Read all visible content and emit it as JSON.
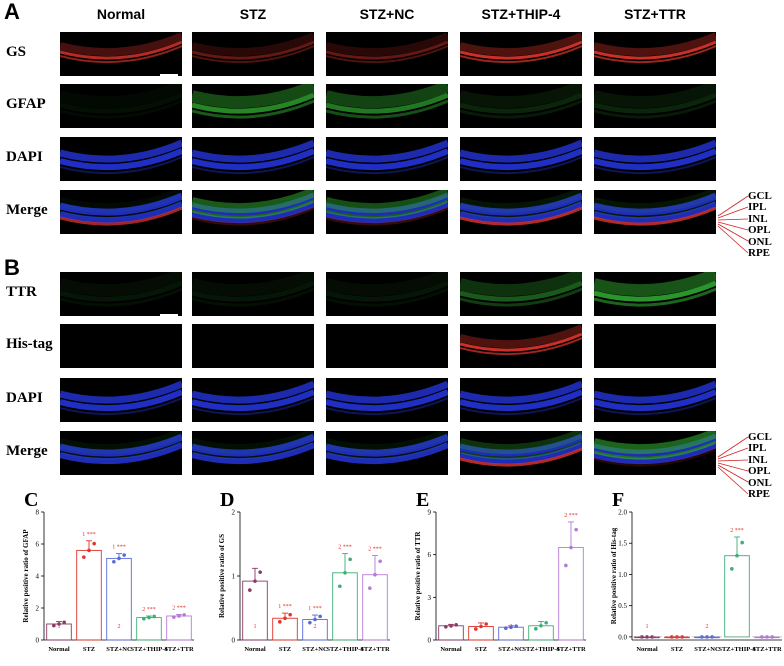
{
  "panelA": {
    "letter": "A",
    "columns": [
      "Normal",
      "STZ",
      "STZ+NC",
      "STZ+THIP-4",
      "STZ+TTR"
    ],
    "rows": [
      "GS",
      "GFAP",
      "DAPI",
      "Merge"
    ]
  },
  "panelB": {
    "letter": "B",
    "rows": [
      "TTR",
      "His-tag",
      "DAPI",
      "Merge"
    ]
  },
  "layers": [
    "GCL",
    "IPL",
    "INL",
    "OPL",
    "ONL",
    "RPE"
  ],
  "colors": {
    "red": "#e0342c",
    "green": "#2fa52f",
    "blue": "#2434d8",
    "bar_normal": "#8a3a6a",
    "bar_stz": "#e0342c",
    "bar_nc": "#5a6ad8",
    "bar_thip": "#3fae76",
    "bar_ttr": "#b57ad8"
  },
  "chart_data": [
    {
      "type": "bar",
      "letter": "C",
      "ylabel": "Relative positive ratio of GFAP",
      "categories": [
        "Normal",
        "STZ",
        "STZ+NC",
        "STZ+THIP-4",
        "STZ+TTR"
      ],
      "values": [
        1.0,
        5.6,
        5.1,
        1.4,
        1.5
      ],
      "errors": [
        0.15,
        0.6,
        0.3,
        0.1,
        0.1
      ],
      "ylim": [
        0,
        8
      ],
      "yticks": [
        0,
        2,
        4,
        6,
        8
      ],
      "annotations": [
        "1",
        "1 ***",
        "1 ***|2",
        "2 ***",
        "2 ***"
      ]
    },
    {
      "type": "bar",
      "letter": "D",
      "ylabel": "Relative positive ratio of GS",
      "categories": [
        "Normal",
        "STZ",
        "STZ+NC",
        "STZ+THIP-4",
        "STZ+TTR"
      ],
      "values": [
        0.92,
        0.34,
        0.32,
        1.05,
        1.02
      ],
      "errors": [
        0.2,
        0.08,
        0.07,
        0.3,
        0.3
      ],
      "ylim": [
        0,
        2
      ],
      "yticks": [
        0,
        1,
        2
      ],
      "annotations": [
        "1",
        "1 ***",
        "1 ***|2",
        "2 ***",
        "2 ***"
      ]
    },
    {
      "type": "bar",
      "letter": "E",
      "ylabel": "Relative positive ratio of TTR",
      "categories": [
        "Normal",
        "STZ",
        "STZ+NC",
        "STZ+THIP-4",
        "STZ+TTR"
      ],
      "values": [
        1.0,
        0.95,
        0.9,
        1.0,
        6.5
      ],
      "errors": [
        0.1,
        0.25,
        0.1,
        0.3,
        1.8
      ],
      "ylim": [
        0,
        9
      ],
      "yticks": [
        0,
        3,
        6,
        9
      ],
      "annotations": [
        "1",
        "",
        "2",
        "",
        "2 ***"
      ]
    },
    {
      "type": "bar",
      "letter": "F",
      "ylabel": "Relative positive ratio of His-tag",
      "categories": [
        "Normal",
        "STZ",
        "STZ+NC",
        "STZ+THIP-4",
        "STZ+TTR"
      ],
      "values": [
        0.0,
        0.0,
        0.0,
        1.3,
        0.0
      ],
      "errors": [
        0.0,
        0.0,
        0.0,
        0.3,
        0.0
      ],
      "ylim": [
        -0.05,
        2.0
      ],
      "yticks": [
        0.0,
        0.5,
        1.0,
        1.5,
        2.0
      ],
      "annotations": [
        "1",
        "",
        "2",
        "2 ***",
        ""
      ]
    }
  ]
}
